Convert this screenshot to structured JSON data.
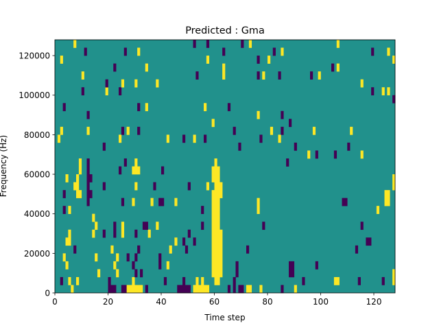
{
  "chart_data": {
    "type": "heatmap",
    "title": "Predicted : Gma",
    "xlabel": "Time step",
    "ylabel": "Frequency (Hz)",
    "xlim": [
      0,
      128
    ],
    "ylim": [
      0,
      128000
    ],
    "n_cols": 128,
    "n_rows": 32,
    "xticks": [
      0,
      20,
      40,
      60,
      80,
      100,
      120
    ],
    "yticks": [
      0,
      20000,
      40000,
      60000,
      80000,
      100000,
      120000
    ],
    "xtick_labels": [
      "0",
      "20",
      "40",
      "60",
      "80",
      "100",
      "120"
    ],
    "ytick_labels": [
      "0",
      "20000",
      "40000",
      "60000",
      "80000",
      "100000",
      "120000"
    ],
    "background_value": 0.5,
    "colormap": {
      "low": "#440154",
      "mid": "#21918c",
      "high": "#fde725"
    },
    "cells_note": "[col_start, col_end, row_start, row_end, value] with value 0=low, 1=high",
    "cells": [
      [
        60,
        60,
        1,
        16,
        1
      ],
      [
        61,
        61,
        1,
        15,
        1
      ],
      [
        59,
        59,
        2,
        12,
        1
      ],
      [
        62,
        62,
        2,
        7,
        1
      ],
      [
        59,
        59,
        14,
        15,
        1
      ],
      [
        62,
        62,
        12,
        13,
        1
      ],
      [
        6,
        6,
        0,
        0,
        1
      ],
      [
        20,
        22,
        0,
        0,
        0
      ],
      [
        25,
        26,
        0,
        0,
        0
      ],
      [
        27,
        32,
        0,
        0,
        1
      ],
      [
        34,
        34,
        0,
        0,
        0
      ],
      [
        46,
        50,
        0,
        0,
        0
      ],
      [
        52,
        57,
        0,
        0,
        1
      ],
      [
        65,
        65,
        0,
        0,
        0
      ],
      [
        67,
        67,
        0,
        1,
        0
      ],
      [
        69,
        70,
        0,
        0,
        0
      ],
      [
        72,
        73,
        0,
        0,
        1
      ],
      [
        77,
        77,
        0,
        0,
        1
      ],
      [
        85,
        85,
        0,
        0,
        0
      ],
      [
        90,
        90,
        0,
        0,
        1
      ],
      [
        2,
        2,
        1,
        1,
        0
      ],
      [
        5,
        5,
        1,
        1,
        1
      ],
      [
        8,
        8,
        1,
        1,
        1
      ],
      [
        20,
        20,
        1,
        1,
        0
      ],
      [
        29,
        29,
        1,
        1,
        1
      ],
      [
        41,
        41,
        1,
        1,
        0
      ],
      [
        48,
        48,
        1,
        1,
        0
      ],
      [
        53,
        53,
        1,
        1,
        1
      ],
      [
        55,
        55,
        1,
        1,
        1
      ],
      [
        93,
        93,
        1,
        1,
        0
      ],
      [
        105,
        106,
        1,
        1,
        1
      ],
      [
        114,
        114,
        1,
        1,
        0
      ],
      [
        123,
        123,
        1,
        1,
        0
      ],
      [
        127,
        127,
        1,
        2,
        1
      ],
      [
        16,
        16,
        2,
        2,
        1
      ],
      [
        23,
        23,
        2,
        2,
        1
      ],
      [
        30,
        30,
        2,
        2,
        0
      ],
      [
        32,
        32,
        2,
        2,
        0
      ],
      [
        68,
        68,
        2,
        3,
        0
      ],
      [
        88,
        89,
        2,
        3,
        0
      ],
      [
        4,
        4,
        3,
        3,
        1
      ],
      [
        22,
        22,
        3,
        3,
        1
      ],
      [
        29,
        29,
        3,
        3,
        0
      ],
      [
        39,
        39,
        3,
        3,
        0
      ],
      [
        42,
        42,
        3,
        3,
        1
      ],
      [
        98,
        98,
        3,
        3,
        0
      ],
      [
        3,
        3,
        4,
        4,
        1
      ],
      [
        15,
        15,
        4,
        4,
        1
      ],
      [
        23,
        23,
        4,
        4,
        1
      ],
      [
        27,
        27,
        4,
        4,
        0
      ],
      [
        30,
        30,
        4,
        4,
        0
      ],
      [
        39,
        39,
        4,
        4,
        0
      ],
      [
        7,
        7,
        5,
        5,
        0
      ],
      [
        21,
        21,
        5,
        5,
        1
      ],
      [
        31,
        31,
        5,
        5,
        0
      ],
      [
        43,
        43,
        5,
        5,
        1
      ],
      [
        49,
        49,
        5,
        5,
        0
      ],
      [
        72,
        72,
        5,
        5,
        0
      ],
      [
        113,
        113,
        5,
        5,
        0
      ],
      [
        4,
        5,
        6,
        6,
        1
      ],
      [
        45,
        45,
        6,
        6,
        1
      ],
      [
        48,
        48,
        6,
        6,
        0
      ],
      [
        52,
        52,
        6,
        6,
        0
      ],
      [
        117,
        118,
        6,
        6,
        0
      ],
      [
        5,
        5,
        7,
        7,
        1
      ],
      [
        14,
        14,
        7,
        7,
        1
      ],
      [
        18,
        18,
        7,
        7,
        0
      ],
      [
        22,
        22,
        7,
        7,
        0
      ],
      [
        25,
        25,
        7,
        7,
        1
      ],
      [
        30,
        30,
        7,
        7,
        0
      ],
      [
        35,
        35,
        7,
        7,
        1
      ],
      [
        50,
        50,
        7,
        7,
        0
      ],
      [
        15,
        15,
        8,
        8,
        1
      ],
      [
        22,
        22,
        8,
        8,
        0
      ],
      [
        25,
        25,
        8,
        8,
        1
      ],
      [
        33,
        34,
        8,
        8,
        0
      ],
      [
        38,
        38,
        8,
        8,
        1
      ],
      [
        55,
        55,
        8,
        8,
        0
      ],
      [
        78,
        78,
        8,
        8,
        0
      ],
      [
        115,
        115,
        8,
        8,
        0
      ],
      [
        14,
        14,
        9,
        9,
        1
      ],
      [
        3,
        3,
        10,
        10,
        0
      ],
      [
        5,
        5,
        10,
        10,
        1
      ],
      [
        55,
        55,
        10,
        10,
        0
      ],
      [
        76,
        76,
        10,
        11,
        1
      ],
      [
        121,
        121,
        10,
        10,
        1
      ],
      [
        25,
        25,
        11,
        11,
        0
      ],
      [
        29,
        29,
        11,
        11,
        1
      ],
      [
        36,
        36,
        11,
        11,
        1
      ],
      [
        39,
        40,
        11,
        11,
        0
      ],
      [
        45,
        45,
        11,
        11,
        1
      ],
      [
        108,
        109,
        11,
        11,
        0
      ],
      [
        124,
        125,
        11,
        12,
        1
      ],
      [
        3,
        3,
        12,
        12,
        0
      ],
      [
        8,
        9,
        12,
        12,
        1
      ],
      [
        12,
        13,
        12,
        12,
        0
      ],
      [
        7,
        8,
        13,
        13,
        1
      ],
      [
        18,
        18,
        13,
        13,
        0
      ],
      [
        30,
        30,
        13,
        13,
        1
      ],
      [
        37,
        37,
        13,
        13,
        0
      ],
      [
        50,
        50,
        13,
        13,
        0
      ],
      [
        57,
        57,
        13,
        13,
        1
      ],
      [
        127,
        127,
        13,
        14,
        1
      ],
      [
        4,
        4,
        14,
        14,
        1
      ],
      [
        8,
        8,
        14,
        14,
        1
      ],
      [
        12,
        13,
        14,
        14,
        0
      ],
      [
        9,
        9,
        15,
        16,
        1
      ],
      [
        12,
        12,
        11,
        16,
        0
      ],
      [
        24,
        24,
        15,
        15,
        0
      ],
      [
        29,
        29,
        15,
        15,
        1
      ],
      [
        30,
        30,
        15,
        16,
        1
      ],
      [
        31,
        31,
        15,
        15,
        1
      ],
      [
        40,
        40,
        15,
        15,
        0
      ],
      [
        26,
        26,
        16,
        16,
        0
      ],
      [
        87,
        87,
        16,
        16,
        0
      ],
      [
        95,
        95,
        17,
        17,
        1
      ],
      [
        98,
        98,
        17,
        17,
        0
      ],
      [
        105,
        105,
        17,
        17,
        0
      ],
      [
        115,
        115,
        17,
        17,
        1
      ],
      [
        18,
        18,
        18,
        18,
        0
      ],
      [
        69,
        69,
        18,
        18,
        0
      ],
      [
        90,
        90,
        18,
        18,
        0
      ],
      [
        110,
        110,
        18,
        18,
        0
      ],
      [
        1,
        1,
        19,
        19,
        1
      ],
      [
        24,
        24,
        19,
        19,
        1
      ],
      [
        42,
        42,
        19,
        19,
        1
      ],
      [
        48,
        48,
        19,
        19,
        0
      ],
      [
        52,
        52,
        19,
        19,
        1
      ],
      [
        56,
        56,
        19,
        19,
        0
      ],
      [
        77,
        77,
        19,
        19,
        0
      ],
      [
        84,
        84,
        19,
        19,
        1
      ],
      [
        2,
        2,
        20,
        20,
        1
      ],
      [
        12,
        12,
        20,
        20,
        1
      ],
      [
        25,
        25,
        20,
        20,
        0
      ],
      [
        27,
        27,
        20,
        20,
        1
      ],
      [
        31,
        31,
        20,
        20,
        0
      ],
      [
        67,
        67,
        20,
        20,
        0
      ],
      [
        81,
        81,
        20,
        20,
        1
      ],
      [
        85,
        85,
        20,
        20,
        0
      ],
      [
        97,
        97,
        20,
        20,
        1
      ],
      [
        111,
        111,
        20,
        20,
        1
      ],
      [
        88,
        88,
        21,
        21,
        0
      ],
      [
        59,
        59,
        21,
        21,
        1
      ],
      [
        12,
        12,
        22,
        22,
        0
      ],
      [
        76,
        76,
        22,
        22,
        1
      ],
      [
        85,
        85,
        22,
        22,
        0
      ],
      [
        3,
        3,
        23,
        23,
        0
      ],
      [
        31,
        31,
        23,
        23,
        0
      ],
      [
        34,
        34,
        23,
        23,
        1
      ],
      [
        56,
        56,
        23,
        23,
        1
      ],
      [
        65,
        65,
        23,
        23,
        0
      ],
      [
        127,
        127,
        24,
        24,
        0
      ],
      [
        10,
        10,
        25,
        25,
        0
      ],
      [
        19,
        19,
        25,
        25,
        1
      ],
      [
        24,
        24,
        25,
        25,
        0
      ],
      [
        119,
        119,
        25,
        25,
        0
      ],
      [
        123,
        123,
        25,
        25,
        1
      ],
      [
        125,
        125,
        25,
        25,
        1
      ],
      [
        19,
        19,
        26,
        26,
        0
      ],
      [
        25,
        25,
        26,
        26,
        1
      ],
      [
        30,
        30,
        26,
        26,
        1
      ],
      [
        38,
        38,
        26,
        26,
        1
      ],
      [
        115,
        115,
        26,
        26,
        1
      ],
      [
        10,
        10,
        27,
        27,
        1
      ],
      [
        53,
        53,
        27,
        27,
        0
      ],
      [
        63,
        63,
        27,
        28,
        1
      ],
      [
        76,
        76,
        27,
        27,
        0
      ],
      [
        78,
        78,
        27,
        27,
        1
      ],
      [
        84,
        84,
        27,
        27,
        0
      ],
      [
        96,
        96,
        27,
        27,
        0
      ],
      [
        99,
        99,
        27,
        27,
        1
      ],
      [
        22,
        22,
        28,
        28,
        0
      ],
      [
        34,
        34,
        28,
        28,
        1
      ],
      [
        104,
        104,
        28,
        28,
        0
      ],
      [
        106,
        106,
        28,
        28,
        1
      ],
      [
        2,
        2,
        29,
        29,
        1
      ],
      [
        57,
        57,
        29,
        29,
        1
      ],
      [
        76,
        76,
        29,
        29,
        0
      ],
      [
        80,
        80,
        29,
        29,
        1
      ],
      [
        127,
        127,
        29,
        29,
        1
      ],
      [
        11,
        11,
        30,
        30,
        0
      ],
      [
        26,
        26,
        30,
        30,
        0
      ],
      [
        31,
        31,
        30,
        30,
        1
      ],
      [
        63,
        63,
        30,
        30,
        0
      ],
      [
        82,
        82,
        30,
        30,
        0
      ],
      [
        85,
        85,
        30,
        30,
        1
      ],
      [
        119,
        119,
        30,
        30,
        0
      ],
      [
        125,
        125,
        30,
        30,
        1
      ],
      [
        7,
        7,
        31,
        31,
        1
      ],
      [
        52,
        52,
        31,
        31,
        0
      ],
      [
        57,
        57,
        31,
        31,
        0
      ],
      [
        70,
        70,
        31,
        31,
        0
      ],
      [
        73,
        73,
        31,
        31,
        1
      ],
      [
        106,
        106,
        31,
        31,
        1
      ]
    ]
  }
}
